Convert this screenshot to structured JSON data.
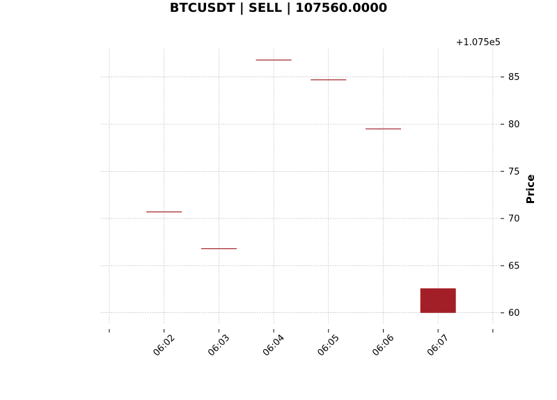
{
  "chart_data": {
    "type": "candlestick",
    "title": "BTCUSDT | SELL | 107560.0000",
    "xlabel": "",
    "ylabel": "Price",
    "y_offset_label": "+1.075e5",
    "y_offset": 107500,
    "x_tick_labels": [
      "06:02",
      "06:03",
      "06:04",
      "06:05",
      "06:06",
      "06:07"
    ],
    "y_ticks": [
      60,
      65,
      70,
      75,
      80,
      85
    ],
    "ylim": [
      58.8,
      88.0
    ],
    "grid": true,
    "colors": {
      "down": "#a31f27",
      "up": "#a31f27"
    },
    "candles": [
      {
        "time": "06:02",
        "open": 70.7,
        "high": 70.7,
        "low": 70.7,
        "close": 70.7
      },
      {
        "time": "06:03",
        "open": 66.8,
        "high": 66.8,
        "low": 66.8,
        "close": 66.8
      },
      {
        "time": "06:04",
        "open": 86.8,
        "high": 86.8,
        "low": 86.8,
        "close": 86.8
      },
      {
        "time": "06:05",
        "open": 84.7,
        "high": 84.7,
        "low": 84.7,
        "close": 84.7
      },
      {
        "time": "06:06",
        "open": 79.5,
        "high": 79.5,
        "low": 79.5,
        "close": 79.5
      },
      {
        "time": "06:07",
        "open": 62.6,
        "high": 62.6,
        "low": 60.0,
        "close": 60.0
      }
    ]
  }
}
